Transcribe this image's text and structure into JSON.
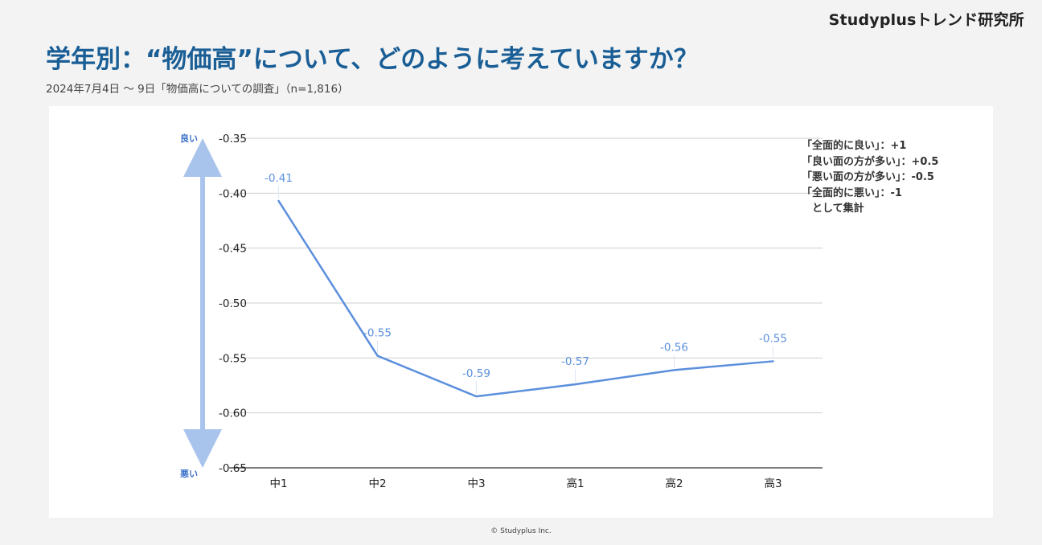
{
  "brand": "Studyplusトレンド研究所",
  "title": "学年別：“物価高”について、どのように考えていますか？",
  "subtitle": "2024年7月4日 〜 9日「物価高についての調査」（n=1,816）",
  "footer": "© Studyplus Inc.",
  "scale_note": [
    "「全面的に良い」：+1",
    "「良い面の方が多い」：+0.5",
    "「悪い面の方が多い」：-0.5",
    "「全面的に悪い」：-1",
    "　として集計"
  ],
  "colors": {
    "line": "#5b8fdc",
    "label": "#5b8fdc",
    "axis_arrow": "#a8c4ec",
    "title": "#1a5e96",
    "axis_label": "#3a6fc9"
  },
  "chart_data": {
    "type": "line",
    "categories": [
      "中1",
      "中2",
      "中3",
      "高1",
      "高2",
      "高3"
    ],
    "values": [
      -0.407,
      -0.548,
      -0.585,
      -0.574,
      -0.561,
      -0.553
    ],
    "data_labels": [
      "-0.41",
      "-0.55",
      "-0.59",
      "-0.57",
      "-0.56",
      "-0.55"
    ],
    "ylim": [
      -0.65,
      -0.35
    ],
    "yticks": [
      -0.35,
      -0.4,
      -0.45,
      -0.5,
      -0.55,
      -0.6,
      -0.65
    ],
    "ytick_labels": [
      "-0.35",
      "-0.40",
      "-0.45",
      "-0.50",
      "-0.55",
      "-0.60",
      "-0.65"
    ],
    "y_axis_top_label": "良い",
    "y_axis_bottom_label": "悪い",
    "grid": true,
    "legend": false
  }
}
